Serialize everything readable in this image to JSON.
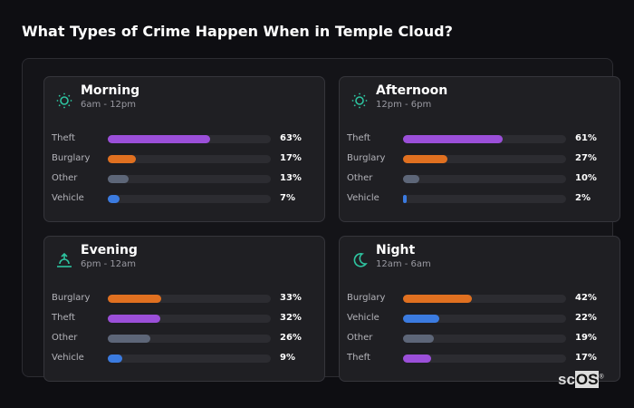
{
  "title": "What Types of Crime Happen When in Temple Cloud?",
  "colors": {
    "Theft": "#9b4fd9",
    "Burglary": "#e07020",
    "Other": "#5d6678",
    "Vehicle": "#3b7be0",
    "icon": "#2ec4a0"
  },
  "chart_data": {
    "type": "bar",
    "unit": "%",
    "panels": [
      {
        "name": "Morning",
        "time": "6am - 12pm",
        "icon": "sun-icon",
        "rows": [
          {
            "label": "Theft",
            "value": 63
          },
          {
            "label": "Burglary",
            "value": 17
          },
          {
            "label": "Other",
            "value": 13
          },
          {
            "label": "Vehicle",
            "value": 7
          }
        ]
      },
      {
        "name": "Afternoon",
        "time": "12pm - 6pm",
        "icon": "sun-icon",
        "rows": [
          {
            "label": "Theft",
            "value": 61
          },
          {
            "label": "Burglary",
            "value": 27
          },
          {
            "label": "Other",
            "value": 10
          },
          {
            "label": "Vehicle",
            "value": 2
          }
        ]
      },
      {
        "name": "Evening",
        "time": "6pm - 12am",
        "icon": "sunset-icon",
        "rows": [
          {
            "label": "Burglary",
            "value": 33
          },
          {
            "label": "Theft",
            "value": 32
          },
          {
            "label": "Other",
            "value": 26
          },
          {
            "label": "Vehicle",
            "value": 9
          }
        ]
      },
      {
        "name": "Night",
        "time": "12am - 6am",
        "icon": "moon-icon",
        "rows": [
          {
            "label": "Burglary",
            "value": 42
          },
          {
            "label": "Vehicle",
            "value": 22
          },
          {
            "label": "Other",
            "value": 19
          },
          {
            "label": "Theft",
            "value": 17
          }
        ]
      }
    ],
    "xlim": [
      0,
      100
    ]
  },
  "logo": "scOS"
}
